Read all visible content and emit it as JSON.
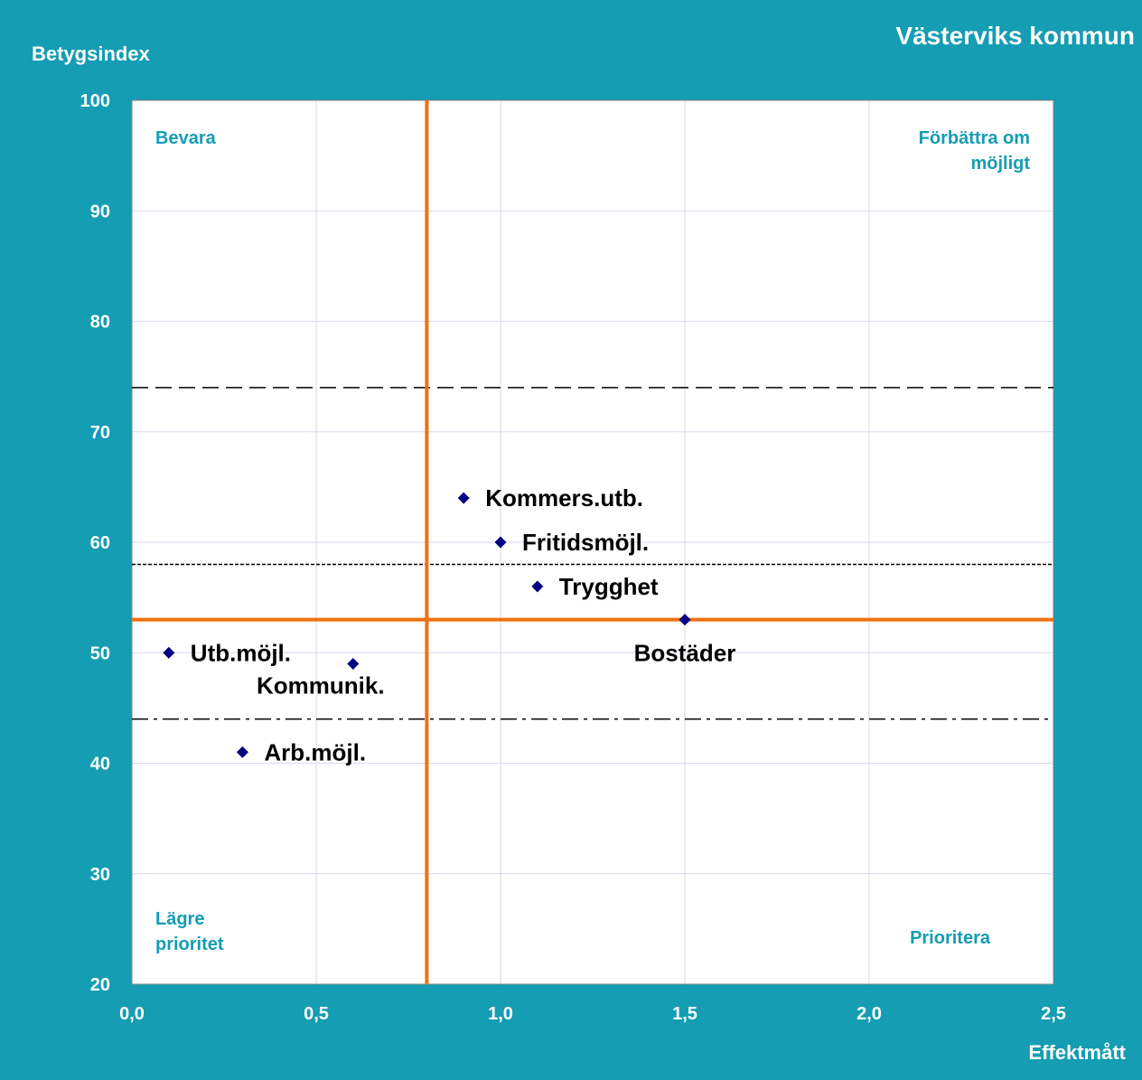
{
  "chart_data": {
    "type": "scatter",
    "title": "Västerviks kommun",
    "xlabel": "Effektmått",
    "ylabel": "Betygsindex",
    "xlim": [
      0,
      2.5
    ],
    "ylim": [
      20,
      100
    ],
    "x_ticks": [
      "0,0",
      "0,5",
      "1,0",
      "1,5",
      "2,0",
      "2,5"
    ],
    "y_ticks": [
      "20",
      "30",
      "40",
      "50",
      "60",
      "70",
      "80",
      "90",
      "100"
    ],
    "grid": true,
    "points": [
      {
        "label": "Kommers.utb.",
        "x": 0.9,
        "y": 64
      },
      {
        "label": "Fritidsmöjl.",
        "x": 1.0,
        "y": 60
      },
      {
        "label": "Trygghet",
        "x": 1.1,
        "y": 56
      },
      {
        "label": "Bostäder",
        "x": 1.5,
        "y": 53
      },
      {
        "label": "Utb.möjl.",
        "x": 0.1,
        "y": 50
      },
      {
        "label": "Kommunik.",
        "x": 0.6,
        "y": 49
      },
      {
        "label": "Arb.möjl.",
        "x": 0.3,
        "y": 41
      }
    ],
    "reference_lines": {
      "vertical_x": 0.8,
      "horizontal_y": 53,
      "dashed_y": 74,
      "dotted_y": 58,
      "dashdot_y": 44
    },
    "quadrant_labels": {
      "top_left": [
        "Bevara"
      ],
      "top_right": [
        "Förbättra om",
        "möjligt"
      ],
      "bottom_left": [
        "Lägre",
        "prioritet"
      ],
      "bottom_right": [
        "Prioritera"
      ]
    },
    "colors": {
      "background": "#149db3",
      "plot_area": "#ffffff",
      "gridline": "#d8d8ec",
      "marker": "#000080",
      "reference_line": "#f07010",
      "quadrant_text": "#149db3"
    }
  }
}
